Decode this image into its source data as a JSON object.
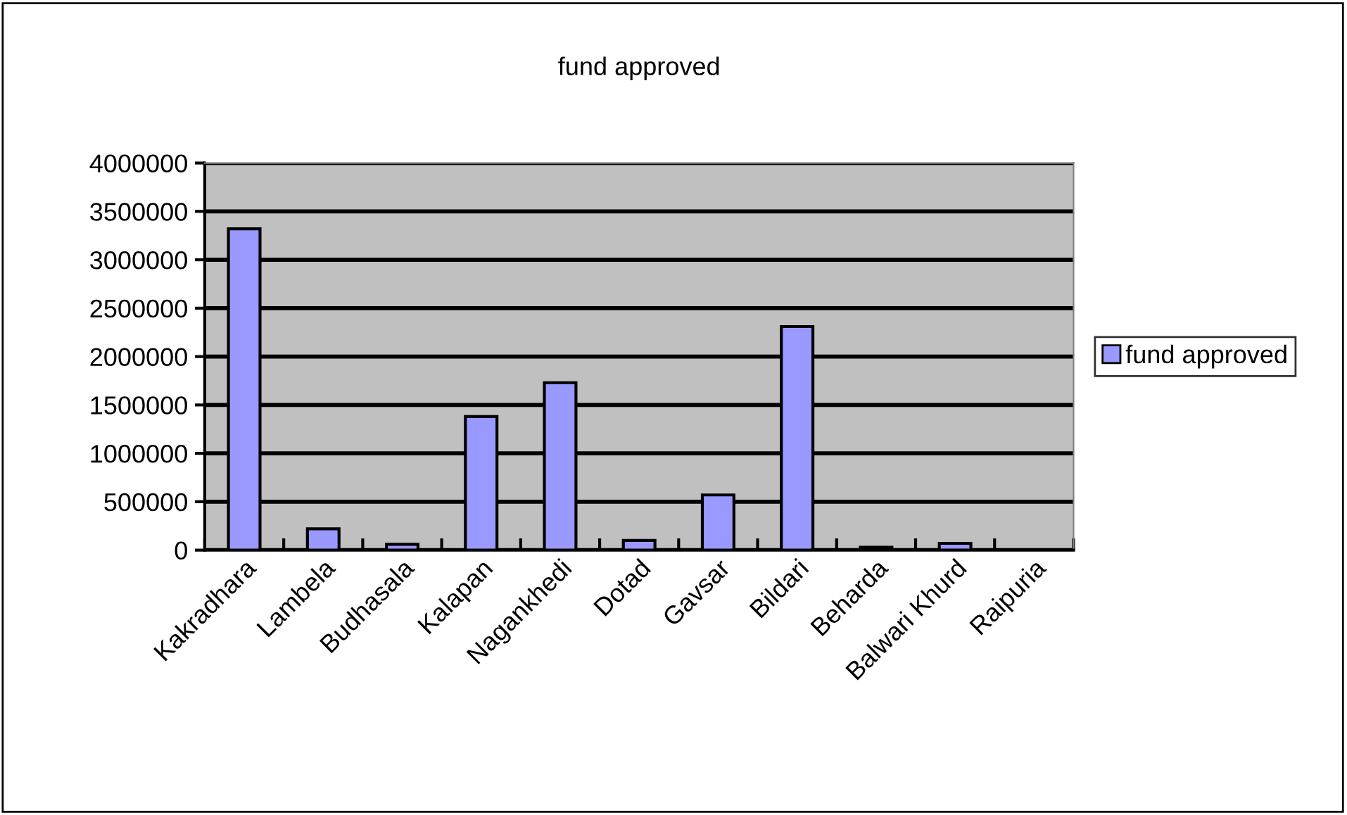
{
  "chart_data": {
    "type": "bar",
    "title": "fund approved",
    "categories": [
      "Kakradhara",
      "Lambela",
      "Budhasala",
      "Kalapan",
      "Nagankhedi",
      "Dotad",
      "Gavsar",
      "Bildari",
      "Beharda",
      "Balwari Khurd",
      "Raipuria"
    ],
    "series": [
      {
        "name": "fund approved",
        "color": "#9999ff",
        "values": [
          3320000,
          220000,
          60000,
          1380000,
          1730000,
          100000,
          570000,
          2310000,
          30000,
          70000,
          null
        ]
      }
    ],
    "ylim": [
      0,
      4000000
    ],
    "yticks": [
      {
        "value": 0,
        "label": "0"
      },
      {
        "value": 500000,
        "label": "500000"
      },
      {
        "value": 1000000,
        "label": "1000000"
      },
      {
        "value": 1500000,
        "label": "1500000"
      },
      {
        "value": 2000000,
        "label": "2000000"
      },
      {
        "value": 2500000,
        "label": "2500000"
      },
      {
        "value": 3000000,
        "label": "3000000"
      },
      {
        "value": 3500000,
        "label": "3500000"
      },
      {
        "value": 4000000,
        "label": "4000000"
      }
    ],
    "grid": "y",
    "legend": "right"
  }
}
